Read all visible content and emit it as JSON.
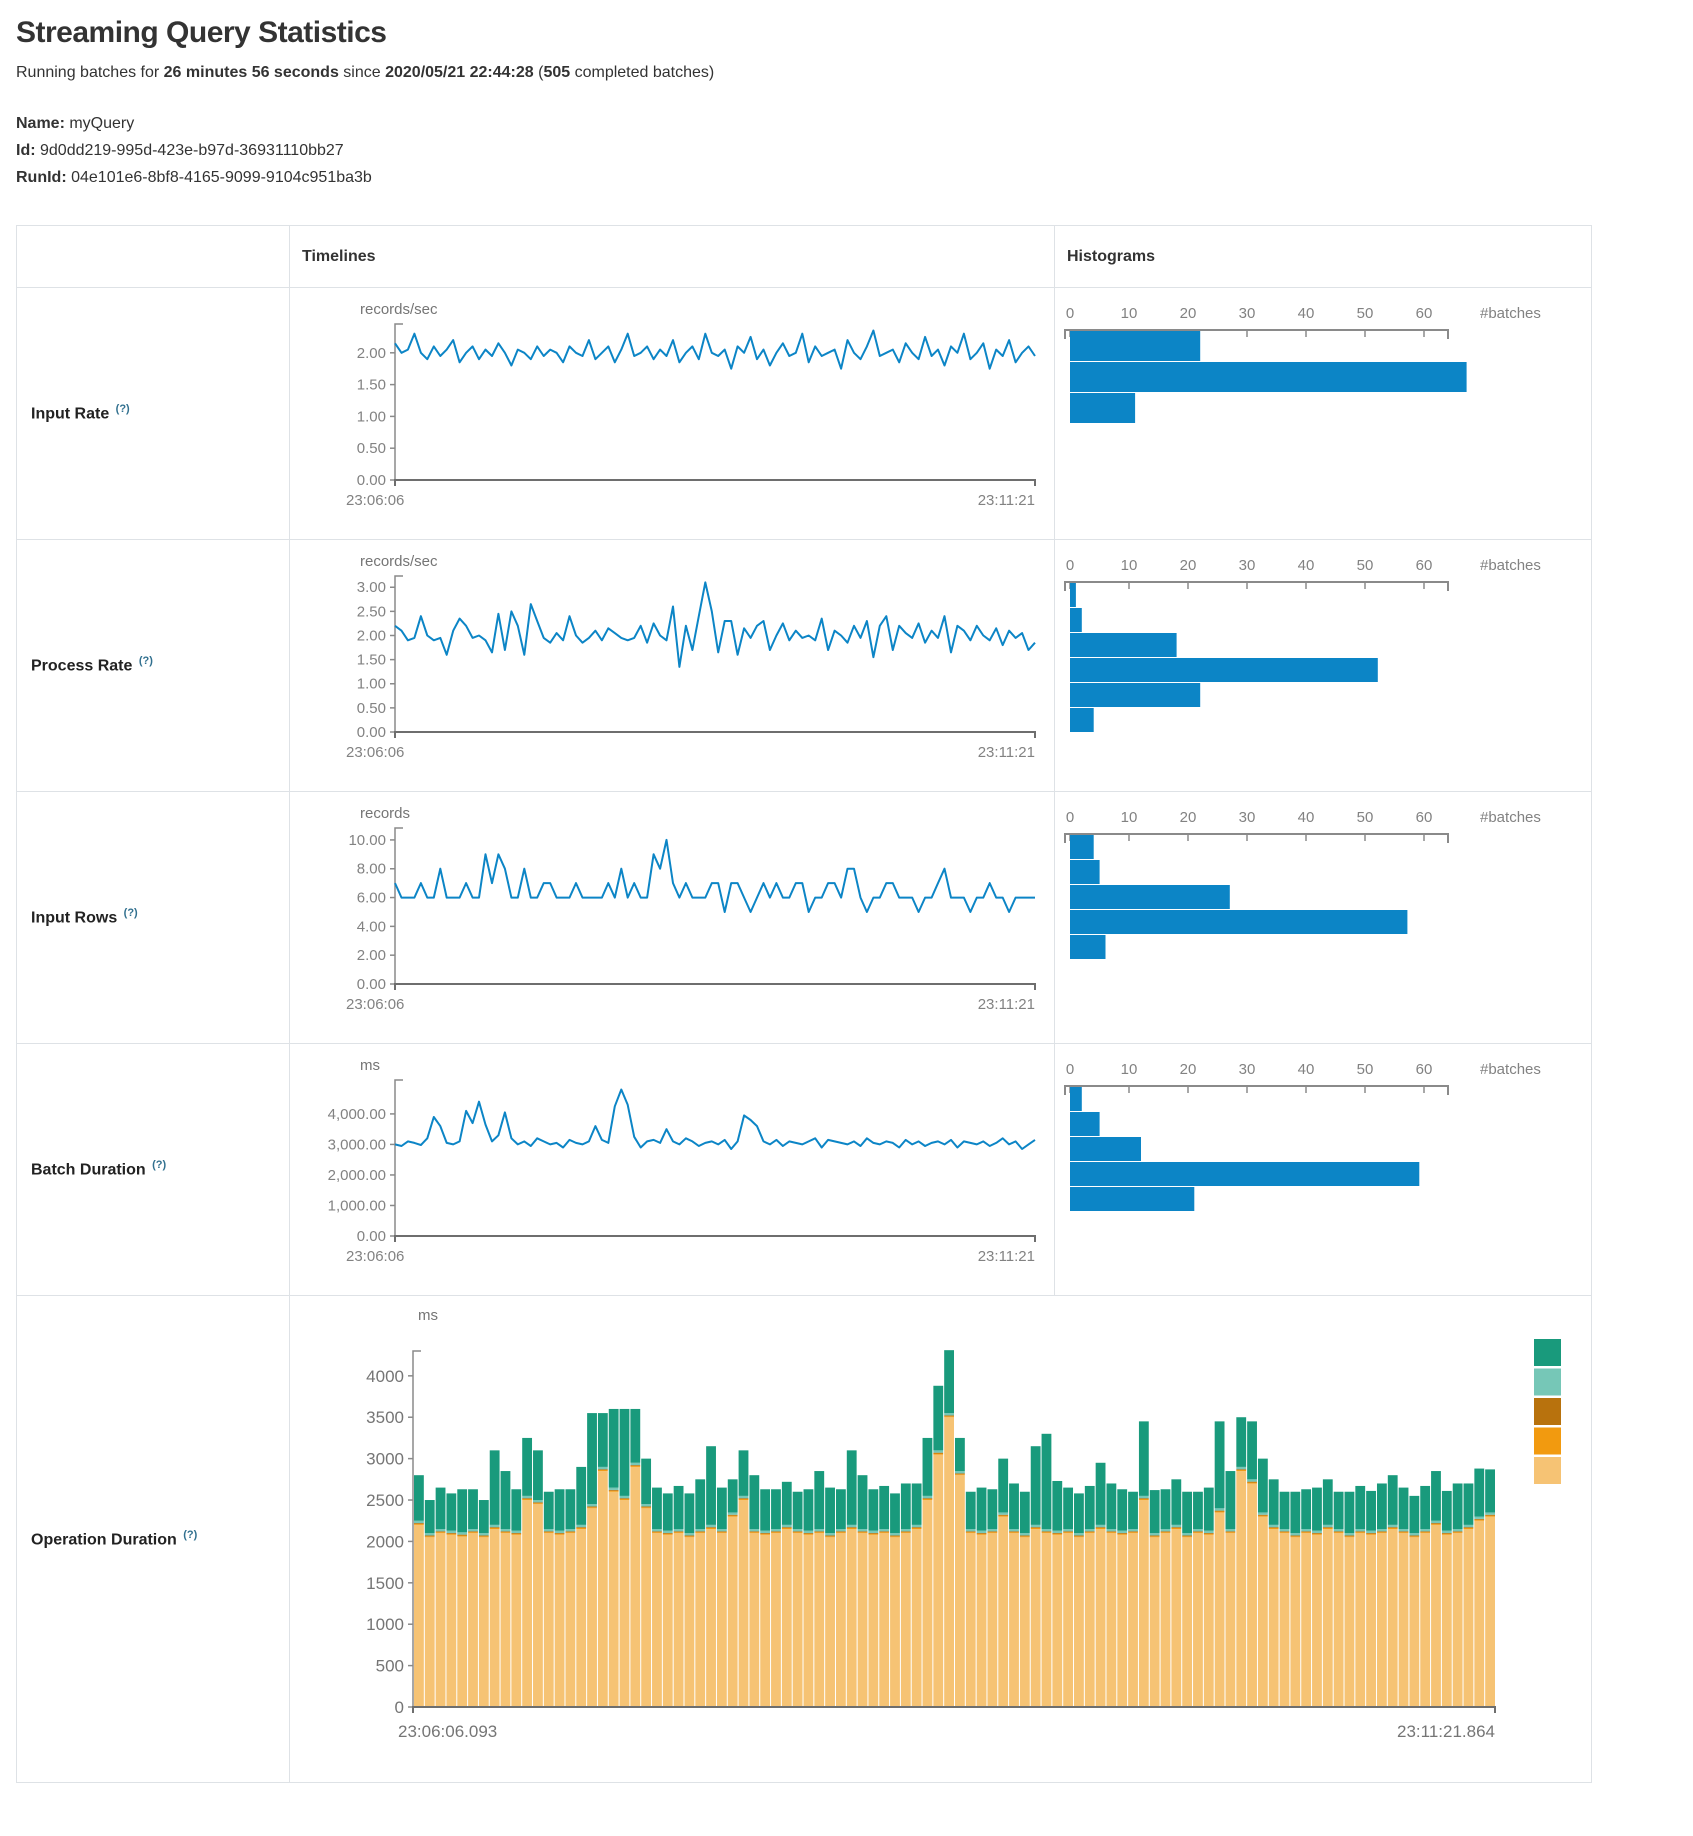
{
  "header": {
    "title": "Streaming Query Statistics",
    "running_prefix": "Running batches for ",
    "duration": "26 minutes 56 seconds",
    "since_word": " since ",
    "timestamp": "2020/05/21 22:44:28",
    "paren_open": " (",
    "batches_count": "505",
    "batches_suffix": " completed batches)"
  },
  "meta": {
    "name_label": "Name:",
    "name_value": " myQuery",
    "id_label": "Id:",
    "id_value": " 9d0dd219-995d-423e-b97d-36931110bb27",
    "runid_label": "RunId:",
    "runid_value": " 04e101e6-8bf8-4165-9099-9104c951ba3b"
  },
  "table": {
    "headers": {
      "timelines": "Timelines",
      "histograms": "Histograms"
    },
    "batches_label": "#batches",
    "hist_ticks": [
      "0",
      "10",
      "20",
      "30",
      "40",
      "50",
      "60"
    ],
    "rows": [
      {
        "label": "Input Rate",
        "sup": "(?)",
        "unit": "records/sec",
        "y_tick_labels": [
          "2.00",
          "1.50",
          "1.00",
          "0.50",
          "0.00"
        ],
        "y_tick_values": [
          2,
          1.5,
          1,
          0.5,
          0
        ],
        "ymax": 2.39,
        "x_left": "23:06:06",
        "x_right": "23:11:21",
        "hist_bar_h": 31
      },
      {
        "label": "Process Rate",
        "sup": "(?)",
        "unit": "records/sec",
        "y_tick_labels": [
          "3.00",
          "2.50",
          "2.00",
          "1.50",
          "1.00",
          "0.50",
          "0.00"
        ],
        "y_tick_values": [
          3,
          2.5,
          2,
          1.5,
          1,
          0.5,
          0
        ],
        "ymax": 3.15,
        "x_left": "23:06:06",
        "x_right": "23:11:21",
        "hist_bar_h": 25
      },
      {
        "label": "Input Rows",
        "sup": "(?)",
        "unit": "records",
        "y_tick_labels": [
          "10.00",
          "8.00",
          "6.00",
          "4.00",
          "2.00",
          "0.00"
        ],
        "y_tick_values": [
          10,
          8,
          6,
          4,
          2,
          0
        ],
        "ymax": 10.55,
        "x_left": "23:06:06",
        "x_right": "23:11:21",
        "hist_bar_h": 25
      },
      {
        "label": "Batch Duration",
        "sup": "(?)",
        "unit": "ms",
        "y_tick_labels": [
          "4,000.00",
          "3,000.00",
          "2,000.00",
          "1,000.00",
          "0.00"
        ],
        "y_tick_values": [
          4000,
          3000,
          2000,
          1000,
          0
        ],
        "ymax": 4980,
        "x_left": "23:06:06",
        "x_right": "23:11:21",
        "hist_bar_h": 25
      },
      {
        "label": "Operation Duration",
        "sup": "(?)",
        "unit": "ms",
        "y_tick_labels": [
          "4000",
          "3500",
          "3000",
          "2500",
          "2000",
          "1500",
          "1000",
          "500",
          "0"
        ],
        "y_tick_values": [
          4000,
          3500,
          3000,
          2500,
          2000,
          1500,
          1000,
          500,
          0
        ],
        "x_left": "23:06:06.093",
        "x_right": "23:11:21.864"
      }
    ]
  },
  "colors": {
    "line_blue": "#0C85C6",
    "hist_blue": "#0C85C6",
    "axis_gray": "#8a8a8a",
    "axis_dark": "#6e6e6e",
    "teal": "#199A7C",
    "light_teal": "#76C7B7",
    "dark_orange": "#B8720D",
    "orange": "#F29A0F",
    "tan": "#F6C374"
  },
  "chart_data": [
    {
      "type": "line",
      "name": "input-rate-timeline",
      "title": "Input Rate",
      "ylabel": "records/sec",
      "x_start": "23:06:06",
      "x_end": "23:11:21",
      "ylim": [
        0,
        2.39
      ],
      "values": [
        2.15,
        2.0,
        2.05,
        2.3,
        2.0,
        1.9,
        2.1,
        1.95,
        2.05,
        2.2,
        1.85,
        2.0,
        2.1,
        1.9,
        2.05,
        1.95,
        2.15,
        2.0,
        1.8,
        2.05,
        2.0,
        1.9,
        2.1,
        1.95,
        2.05,
        2.0,
        1.85,
        2.1,
        2.0,
        1.95,
        2.2,
        1.9,
        2.0,
        2.1,
        1.85,
        2.05,
        2.3,
        1.95,
        2.0,
        2.1,
        1.9,
        2.05,
        1.95,
        2.2,
        1.85,
        2.0,
        2.1,
        1.9,
        2.3,
        2.0,
        1.95,
        2.05,
        1.75,
        2.1,
        2.0,
        2.25,
        1.9,
        2.05,
        1.8,
        2.0,
        2.15,
        1.95,
        2.0,
        2.3,
        1.85,
        2.1,
        1.95,
        2.0,
        2.05,
        1.75,
        2.2,
        2.0,
        1.9,
        2.1,
        2.35,
        1.95,
        2.0,
        2.05,
        1.85,
        2.15,
        2.0,
        1.9,
        2.25,
        1.95,
        2.05,
        1.8,
        2.1,
        2.0,
        2.3,
        1.9,
        2.0,
        2.15,
        1.75,
        2.05,
        1.95,
        2.2,
        1.85,
        2.0,
        2.1,
        1.95
      ]
    },
    {
      "type": "line",
      "name": "process-rate-timeline",
      "title": "Process Rate",
      "ylabel": "records/sec",
      "x_start": "23:06:06",
      "x_end": "23:11:21",
      "ylim": [
        0,
        3.15
      ],
      "values": [
        2.2,
        2.1,
        1.9,
        1.95,
        2.4,
        2.0,
        1.9,
        1.95,
        1.6,
        2.1,
        2.35,
        2.2,
        1.95,
        2.0,
        1.9,
        1.65,
        2.45,
        1.7,
        2.5,
        2.2,
        1.6,
        2.65,
        2.3,
        1.95,
        1.85,
        2.05,
        1.9,
        2.4,
        2.0,
        1.85,
        1.95,
        2.1,
        1.9,
        2.15,
        2.05,
        1.95,
        1.9,
        1.95,
        2.2,
        1.85,
        2.25,
        2.0,
        1.9,
        2.6,
        1.35,
        2.2,
        1.7,
        2.4,
        3.1,
        2.5,
        1.65,
        2.3,
        2.3,
        1.6,
        2.15,
        1.95,
        2.2,
        2.3,
        1.7,
        2.0,
        2.25,
        1.9,
        2.1,
        1.95,
        2.0,
        1.9,
        2.35,
        1.7,
        2.1,
        2.0,
        1.85,
        2.2,
        1.95,
        2.3,
        1.55,
        2.2,
        2.4,
        1.7,
        2.2,
        2.05,
        1.95,
        2.25,
        1.85,
        2.1,
        1.95,
        2.4,
        1.65,
        2.2,
        2.1,
        1.9,
        2.2,
        2.0,
        1.9,
        2.15,
        1.8,
        2.1,
        1.95,
        2.05,
        1.7,
        1.85
      ]
    },
    {
      "type": "line",
      "name": "input-rows-timeline",
      "title": "Input Rows",
      "ylabel": "records",
      "x_start": "23:06:06",
      "x_end": "23:11:21",
      "ylim": [
        0,
        10.55
      ],
      "values": [
        7,
        6,
        6,
        6,
        7,
        6,
        6,
        8,
        6,
        6,
        6,
        7,
        6,
        6,
        9,
        7,
        9,
        8,
        6,
        6,
        8,
        6,
        6,
        7,
        7,
        6,
        6,
        6,
        7,
        6,
        6,
        6,
        6,
        7,
        6,
        8,
        6,
        7,
        6,
        6,
        9,
        8,
        10,
        7,
        6,
        7,
        6,
        6,
        6,
        7,
        7,
        5,
        7,
        7,
        6,
        5,
        6,
        7,
        6,
        7,
        6,
        6,
        7,
        7,
        5,
        6,
        6,
        7,
        7,
        6,
        8,
        8,
        6,
        5,
        6,
        6,
        7,
        7,
        6,
        6,
        6,
        5,
        6,
        6,
        7,
        8,
        6,
        6,
        6,
        5,
        6,
        6,
        7,
        6,
        6,
        5,
        6,
        6,
        6,
        6
      ]
    },
    {
      "type": "line",
      "name": "batch-duration-timeline",
      "title": "Batch Duration",
      "ylabel": "ms",
      "x_start": "23:06:06",
      "x_end": "23:11:21",
      "ylim": [
        0,
        4980
      ],
      "values": [
        3000,
        2950,
        3100,
        3050,
        2980,
        3200,
        3900,
        3600,
        3050,
        3000,
        3100,
        4100,
        3700,
        4400,
        3650,
        3100,
        3300,
        4050,
        3200,
        3000,
        3100,
        2950,
        3200,
        3100,
        3000,
        3050,
        2900,
        3150,
        3050,
        3000,
        3100,
        3600,
        3150,
        3050,
        4250,
        4800,
        4300,
        3250,
        2900,
        3100,
        3150,
        3050,
        3500,
        3100,
        3000,
        3200,
        3100,
        2950,
        3050,
        3100,
        3000,
        3150,
        2850,
        3100,
        3950,
        3800,
        3600,
        3100,
        3000,
        3150,
        2950,
        3100,
        3050,
        3000,
        3100,
        3200,
        2900,
        3150,
        3100,
        3050,
        3000,
        3100,
        2950,
        3200,
        3050,
        3000,
        3100,
        3050,
        2900,
        3150,
        3000,
        3100,
        2950,
        3050,
        3100,
        3000,
        3150,
        2900,
        3100,
        3050,
        3000,
        3100,
        2950,
        3050,
        3200,
        3000,
        3100,
        2850,
        3000,
        3150
      ]
    },
    {
      "type": "stacked_bar",
      "name": "operation-duration-stacked",
      "title": "Operation Duration",
      "ylabel": "ms",
      "x_start": "23:06:06.093",
      "x_end": "23:11:21.864",
      "ylim": [
        0,
        4300
      ],
      "legend_colors": [
        "#199A7C",
        "#76C7B7",
        "#B8720D",
        "#F29A0F",
        "#F6C374"
      ],
      "series": [
        {
          "color": "#F6C374",
          "values": [
            2200,
            2050,
            2100,
            2080,
            2060,
            2100,
            2050,
            2150,
            2100,
            2080,
            2500,
            2450,
            2100,
            2080,
            2100,
            2150,
            2400,
            2850,
            2600,
            2500,
            2900,
            2400,
            2100,
            2080,
            2100,
            2050,
            2100,
            2150,
            2100,
            2300,
            2500,
            2100,
            2080,
            2100,
            2150,
            2100,
            2080,
            2100,
            2050,
            2100,
            2150,
            2100,
            2080,
            2100,
            2050,
            2100,
            2150,
            2500,
            3050,
            3500,
            2800,
            2100,
            2080,
            2100,
            2300,
            2100,
            2050,
            2150,
            2100,
            2080,
            2100,
            2050,
            2100,
            2150,
            2100,
            2080,
            2100,
            2500,
            2050,
            2100,
            2150,
            2050,
            2100,
            2080,
            2350,
            2100,
            2850,
            2700,
            2300,
            2150,
            2100,
            2050,
            2100,
            2080,
            2150,
            2100,
            2050,
            2100,
            2080,
            2100,
            2150,
            2100,
            2050,
            2100,
            2200,
            2080,
            2100,
            2150,
            2250,
            2300
          ]
        },
        {
          "color": "#F29A0F",
          "value": 12
        },
        {
          "color": "#B8720D",
          "value": 10
        },
        {
          "color": "#76C7B7",
          "value": 28
        },
        {
          "color": "#199A7C",
          "values": [
            550,
            400,
            500,
            450,
            520,
            480,
            400,
            900,
            700,
            500,
            700,
            600,
            450,
            500,
            480,
            700,
            1100,
            650,
            950,
            1050,
            650,
            550,
            500,
            450,
            520,
            480,
            600,
            950,
            500,
            400,
            550,
            650,
            500,
            480,
            520,
            450,
            500,
            700,
            550,
            480,
            900,
            650,
            500,
            520,
            480,
            550,
            500,
            700,
            780,
            760,
            400,
            450,
            520,
            480,
            650,
            550,
            500,
            950,
            1150,
            600,
            500,
            480,
            520,
            750,
            550,
            500,
            450,
            900,
            520,
            480,
            550,
            500,
            450,
            520,
            1050,
            700,
            600,
            700,
            650,
            550,
            450,
            500,
            480,
            520,
            550,
            450,
            500,
            520,
            480,
            550,
            600,
            500,
            450,
            520,
            600,
            480,
            550,
            500,
            580,
            520
          ]
        }
      ]
    },
    {
      "type": "bar",
      "name": "input-rate-histogram",
      "xlabel": "#batches",
      "values": [
        22,
        67,
        11
      ],
      "xlim": [
        0,
        66
      ]
    },
    {
      "type": "bar",
      "name": "process-rate-histogram",
      "xlabel": "#batches",
      "values": [
        1,
        2,
        18,
        52,
        22,
        4
      ],
      "xlim": [
        0,
        66
      ]
    },
    {
      "type": "bar",
      "name": "input-rows-histogram",
      "xlabel": "#batches",
      "values": [
        4,
        5,
        27,
        57,
        6
      ],
      "xlim": [
        0,
        66
      ]
    },
    {
      "type": "bar",
      "name": "batch-duration-histogram",
      "xlabel": "#batches",
      "values": [
        2,
        5,
        12,
        59,
        21
      ],
      "xlim": [
        0,
        66
      ]
    }
  ]
}
